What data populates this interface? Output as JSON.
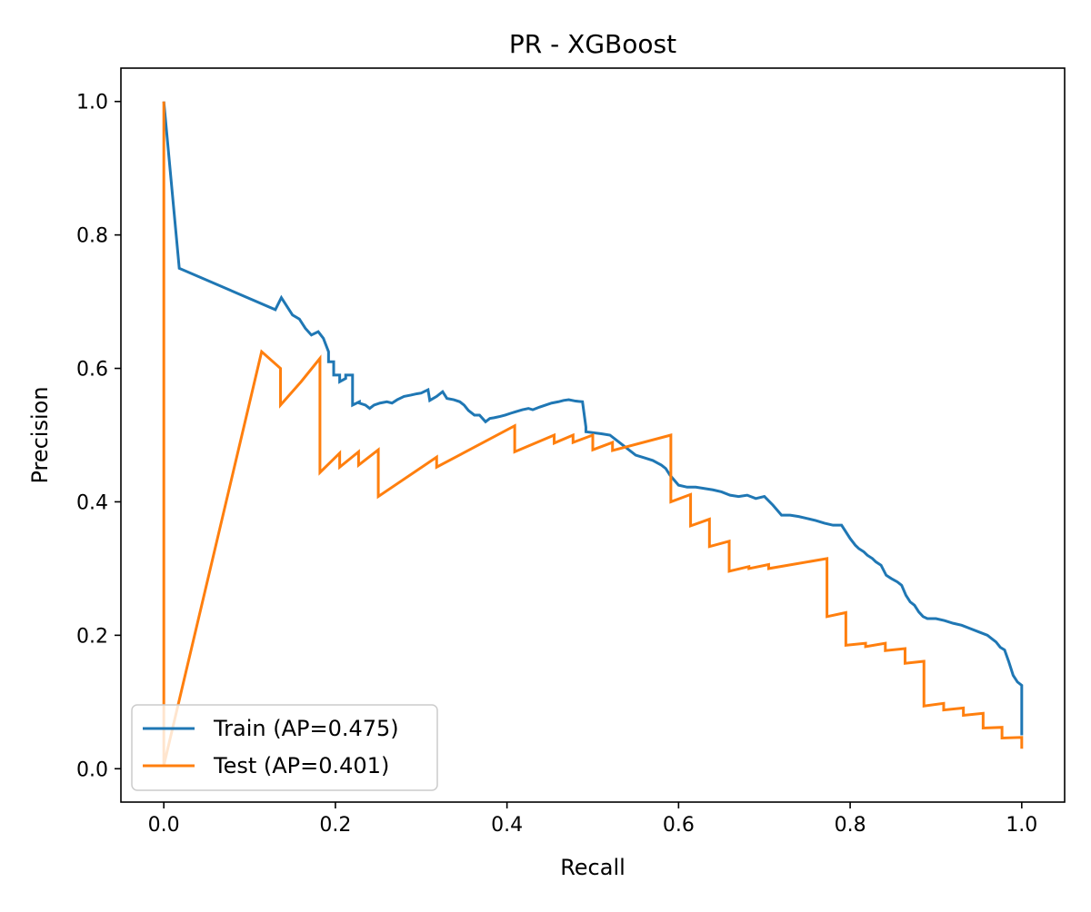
{
  "chart_data": {
    "type": "line",
    "title": "PR - XGBoost",
    "xlabel": "Recall",
    "ylabel": "Precision",
    "xlim": [
      -0.05,
      1.05
    ],
    "ylim": [
      -0.05,
      1.05
    ],
    "xticks": [
      0.0,
      0.2,
      0.4,
      0.6,
      0.8,
      1.0
    ],
    "xtick_labels": [
      "0.0",
      "0.2",
      "0.4",
      "0.6",
      "0.8",
      "1.0"
    ],
    "yticks": [
      0.0,
      0.2,
      0.4,
      0.6,
      0.8,
      1.0
    ],
    "ytick_labels": [
      "0.0",
      "0.2",
      "0.4",
      "0.6",
      "0.8",
      "1.0"
    ],
    "grid": false,
    "legend": {
      "placement": "lower-left",
      "entries": [
        "Train (AP=0.475)",
        "Test (AP=0.401)"
      ]
    },
    "series": [
      {
        "name": "Train (AP=0.475)",
        "color": "#1f77b4",
        "x": [
          0.0,
          0.018,
          0.13,
          0.137,
          0.145,
          0.15,
          0.158,
          0.165,
          0.172,
          0.18,
          0.186,
          0.192,
          0.192,
          0.198,
          0.198,
          0.205,
          0.205,
          0.212,
          0.212,
          0.22,
          0.22,
          0.228,
          0.228,
          0.235,
          0.24,
          0.245,
          0.252,
          0.26,
          0.266,
          0.272,
          0.28,
          0.288,
          0.295,
          0.3,
          0.308,
          0.31,
          0.318,
          0.325,
          0.33,
          0.338,
          0.345,
          0.35,
          0.355,
          0.362,
          0.368,
          0.375,
          0.38,
          0.385,
          0.392,
          0.398,
          0.405,
          0.41,
          0.418,
          0.425,
          0.43,
          0.438,
          0.445,
          0.452,
          0.46,
          0.466,
          0.472,
          0.48,
          0.488,
          0.492,
          0.492,
          0.51,
          0.52,
          0.53,
          0.54,
          0.55,
          0.56,
          0.57,
          0.58,
          0.585,
          0.59,
          0.6,
          0.61,
          0.62,
          0.63,
          0.64,
          0.65,
          0.66,
          0.67,
          0.68,
          0.69,
          0.7,
          0.71,
          0.72,
          0.73,
          0.74,
          0.75,
          0.76,
          0.77,
          0.78,
          0.79,
          0.8,
          0.806,
          0.81,
          0.816,
          0.82,
          0.826,
          0.83,
          0.836,
          0.842,
          0.848,
          0.855,
          0.86,
          0.865,
          0.87,
          0.875,
          0.88,
          0.885,
          0.89,
          0.9,
          0.91,
          0.92,
          0.93,
          0.94,
          0.95,
          0.96,
          0.965,
          0.97,
          0.975,
          0.98,
          0.985,
          0.99,
          0.995,
          1.0,
          1.0
        ],
        "y": [
          1.0,
          0.75,
          0.688,
          0.706,
          0.69,
          0.68,
          0.674,
          0.66,
          0.65,
          0.655,
          0.645,
          0.625,
          0.61,
          0.61,
          0.59,
          0.59,
          0.58,
          0.585,
          0.59,
          0.59,
          0.545,
          0.55,
          0.548,
          0.545,
          0.54,
          0.545,
          0.548,
          0.55,
          0.548,
          0.553,
          0.558,
          0.56,
          0.562,
          0.563,
          0.568,
          0.552,
          0.558,
          0.565,
          0.555,
          0.553,
          0.55,
          0.545,
          0.537,
          0.53,
          0.53,
          0.52,
          0.525,
          0.526,
          0.528,
          0.53,
          0.533,
          0.535,
          0.538,
          0.54,
          0.538,
          0.542,
          0.545,
          0.548,
          0.55,
          0.552,
          0.553,
          0.551,
          0.55,
          0.512,
          0.505,
          0.502,
          0.5,
          0.49,
          0.48,
          0.47,
          0.466,
          0.462,
          0.455,
          0.45,
          0.44,
          0.425,
          0.422,
          0.422,
          0.42,
          0.418,
          0.415,
          0.41,
          0.408,
          0.41,
          0.405,
          0.408,
          0.395,
          0.38,
          0.38,
          0.378,
          0.375,
          0.372,
          0.368,
          0.365,
          0.365,
          0.345,
          0.335,
          0.33,
          0.325,
          0.32,
          0.315,
          0.31,
          0.305,
          0.29,
          0.285,
          0.28,
          0.275,
          0.26,
          0.25,
          0.245,
          0.235,
          0.228,
          0.225,
          0.225,
          0.222,
          0.218,
          0.215,
          0.21,
          0.205,
          0.2,
          0.195,
          0.19,
          0.182,
          0.178,
          0.16,
          0.14,
          0.13,
          0.125,
          0.05
        ]
      },
      {
        "name": "Test (AP=0.401)",
        "color": "#ff7f0e",
        "x": [
          0.0,
          0.0,
          0.0,
          0.114,
          0.136,
          0.136,
          0.16,
          0.182,
          0.182,
          0.205,
          0.205,
          0.227,
          0.227,
          0.25,
          0.25,
          0.318,
          0.318,
          0.409,
          0.409,
          0.455,
          0.455,
          0.477,
          0.477,
          0.5,
          0.5,
          0.523,
          0.523,
          0.591,
          0.591,
          0.614,
          0.614,
          0.636,
          0.636,
          0.659,
          0.659,
          0.682,
          0.682,
          0.705,
          0.705,
          0.773,
          0.773,
          0.795,
          0.795,
          0.818,
          0.818,
          0.841,
          0.841,
          0.864,
          0.864,
          0.886,
          0.886,
          0.909,
          0.909,
          0.932,
          0.932,
          0.955,
          0.955,
          0.977,
          0.977,
          1.0,
          1.0
        ],
        "y": [
          1.0,
          0.005,
          0.005,
          0.625,
          0.6,
          0.545,
          0.58,
          0.615,
          0.444,
          0.473,
          0.452,
          0.475,
          0.455,
          0.478,
          0.408,
          0.467,
          0.452,
          0.514,
          0.475,
          0.5,
          0.488,
          0.5,
          0.489,
          0.5,
          0.478,
          0.489,
          0.477,
          0.5,
          0.4,
          0.411,
          0.364,
          0.374,
          0.333,
          0.341,
          0.296,
          0.303,
          0.3,
          0.306,
          0.3,
          0.315,
          0.228,
          0.234,
          0.185,
          0.188,
          0.183,
          0.188,
          0.177,
          0.18,
          0.158,
          0.161,
          0.094,
          0.098,
          0.088,
          0.091,
          0.08,
          0.083,
          0.061,
          0.062,
          0.046,
          0.047,
          0.03
        ]
      }
    ]
  }
}
